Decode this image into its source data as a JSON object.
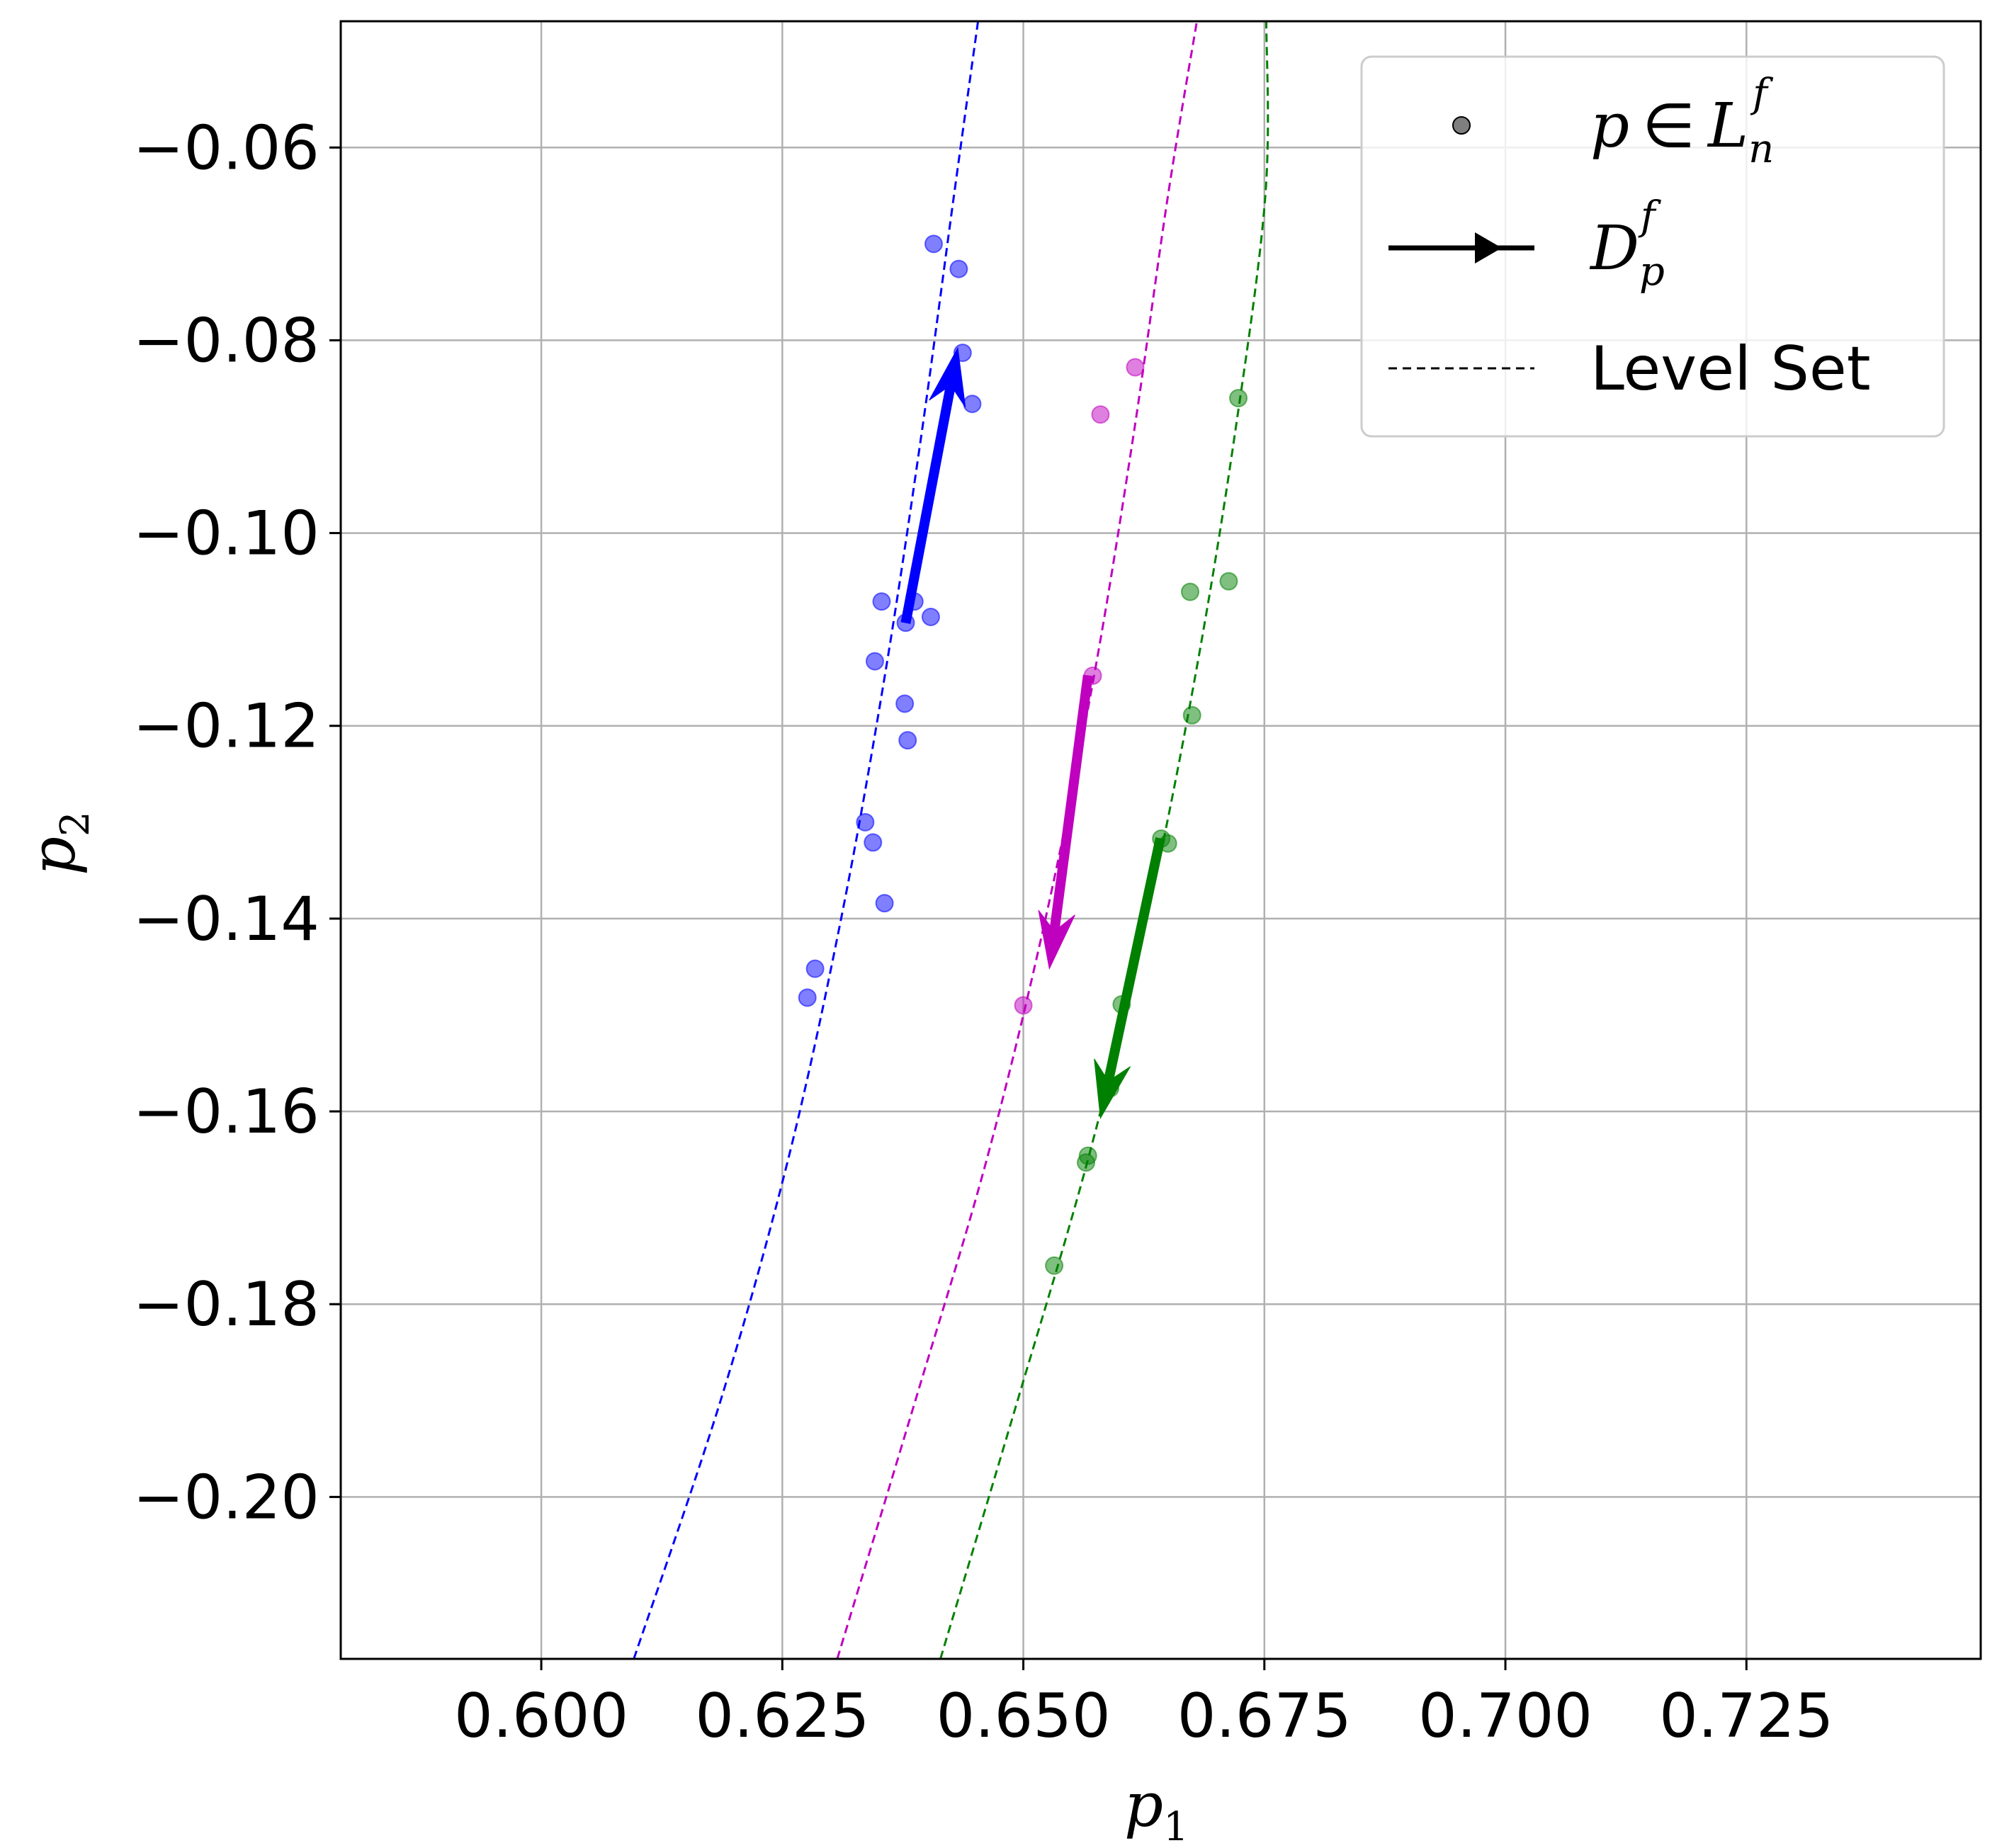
{
  "chart_data": {
    "type": "scatter",
    "title": "",
    "xlabel": {
      "base": "p",
      "sub": "1"
    },
    "ylabel": {
      "base": "p",
      "sub": "2"
    },
    "xlim": [
      0.5792,
      0.7493
    ],
    "ylim": [
      -0.2168,
      -0.0469
    ],
    "grid": true,
    "xticks": [
      0.6,
      0.625,
      0.65,
      0.675,
      0.7,
      0.725
    ],
    "xtick_labels": [
      "0.600",
      "0.625",
      "0.650",
      "0.675",
      "0.700",
      "0.725"
    ],
    "yticks": [
      -0.06,
      -0.08,
      -0.1,
      -0.12,
      -0.14,
      -0.16,
      -0.18,
      -0.2
    ],
    "ytick_labels": [
      "−0.06",
      "−0.08",
      "−0.10",
      "−0.12",
      "−0.14",
      "−0.16",
      "−0.18",
      "−0.20"
    ],
    "legend": {
      "position": "top-right",
      "entries": [
        {
          "kind": "marker",
          "base": "p",
          "op": "∈",
          "rhs": "L",
          "rhs_sub": "n",
          "rhs_sup": "f"
        },
        {
          "kind": "arrow",
          "base": "D",
          "sub": "p",
          "sup": "f"
        },
        {
          "kind": "dashed",
          "label": "Level Set"
        }
      ]
    },
    "series": [
      {
        "color": "#0000ff",
        "points": [
          [
            0.6407,
            -0.07
          ],
          [
            0.6433,
            -0.0726
          ],
          [
            0.6437,
            -0.0813
          ],
          [
            0.6447,
            -0.0866
          ],
          [
            0.6353,
            -0.1071
          ],
          [
            0.6387,
            -0.1071
          ],
          [
            0.6404,
            -0.1087
          ],
          [
            0.6378,
            -0.1093
          ],
          [
            0.6346,
            -0.1133
          ],
          [
            0.6377,
            -0.1177
          ],
          [
            0.638,
            -0.1215
          ],
          [
            0.6336,
            -0.13
          ],
          [
            0.6344,
            -0.1321
          ],
          [
            0.6356,
            -0.1384
          ],
          [
            0.6284,
            -0.1452
          ],
          [
            0.6276,
            -0.1482
          ]
        ],
        "arrow": {
          "from": [
            0.6378,
            -0.1093
          ],
          "to": [
            0.6432,
            -0.0808
          ]
        },
        "level_set": [
          [
            0.6096,
            -0.2168
          ],
          [
            0.6186,
            -0.19
          ],
          [
            0.6256,
            -0.165
          ],
          [
            0.6311,
            -0.14
          ],
          [
            0.6356,
            -0.115
          ],
          [
            0.6394,
            -0.09
          ],
          [
            0.6428,
            -0.065
          ],
          [
            0.6453,
            -0.0469
          ]
        ]
      },
      {
        "color": "#bf00bf",
        "points": [
          [
            0.6616,
            -0.0828
          ],
          [
            0.658,
            -0.0877
          ],
          [
            0.6572,
            -0.1148
          ],
          [
            0.65,
            -0.149
          ]
        ],
        "arrow": {
          "from": [
            0.6567,
            -0.1148
          ],
          "to": [
            0.6527,
            -0.1452
          ]
        },
        "level_set": [
          [
            0.6307,
            -0.2168
          ],
          [
            0.6388,
            -0.19
          ],
          [
            0.6462,
            -0.165
          ],
          [
            0.6523,
            -0.14
          ],
          [
            0.6573,
            -0.115
          ],
          [
            0.6614,
            -0.09
          ],
          [
            0.665,
            -0.065
          ],
          [
            0.668,
            -0.0469
          ]
        ]
      },
      {
        "color": "#008000",
        "points": [
          [
            0.6723,
            -0.086
          ],
          [
            0.6713,
            -0.105
          ],
          [
            0.6673,
            -0.1061
          ],
          [
            0.6675,
            -0.1189
          ],
          [
            0.665,
            -0.1322
          ],
          [
            0.6643,
            -0.1317
          ],
          [
            0.6602,
            -0.1489
          ],
          [
            0.659,
            -0.1576
          ],
          [
            0.6567,
            -0.1646
          ],
          [
            0.6565,
            -0.1653
          ],
          [
            0.6532,
            -0.176
          ]
        ],
        "arrow": {
          "from": [
            0.6642,
            -0.1317
          ],
          "to": [
            0.658,
            -0.1607
          ]
        },
        "level_set": [
          [
            0.6414,
            -0.2168
          ],
          [
            0.6494,
            -0.19
          ],
          [
            0.6567,
            -0.165
          ],
          [
            0.6628,
            -0.14
          ],
          [
            0.6678,
            -0.115
          ],
          [
            0.6719,
            -0.09
          ],
          [
            0.6751,
            -0.065
          ],
          [
            0.6752,
            -0.0469
          ]
        ]
      }
    ]
  }
}
